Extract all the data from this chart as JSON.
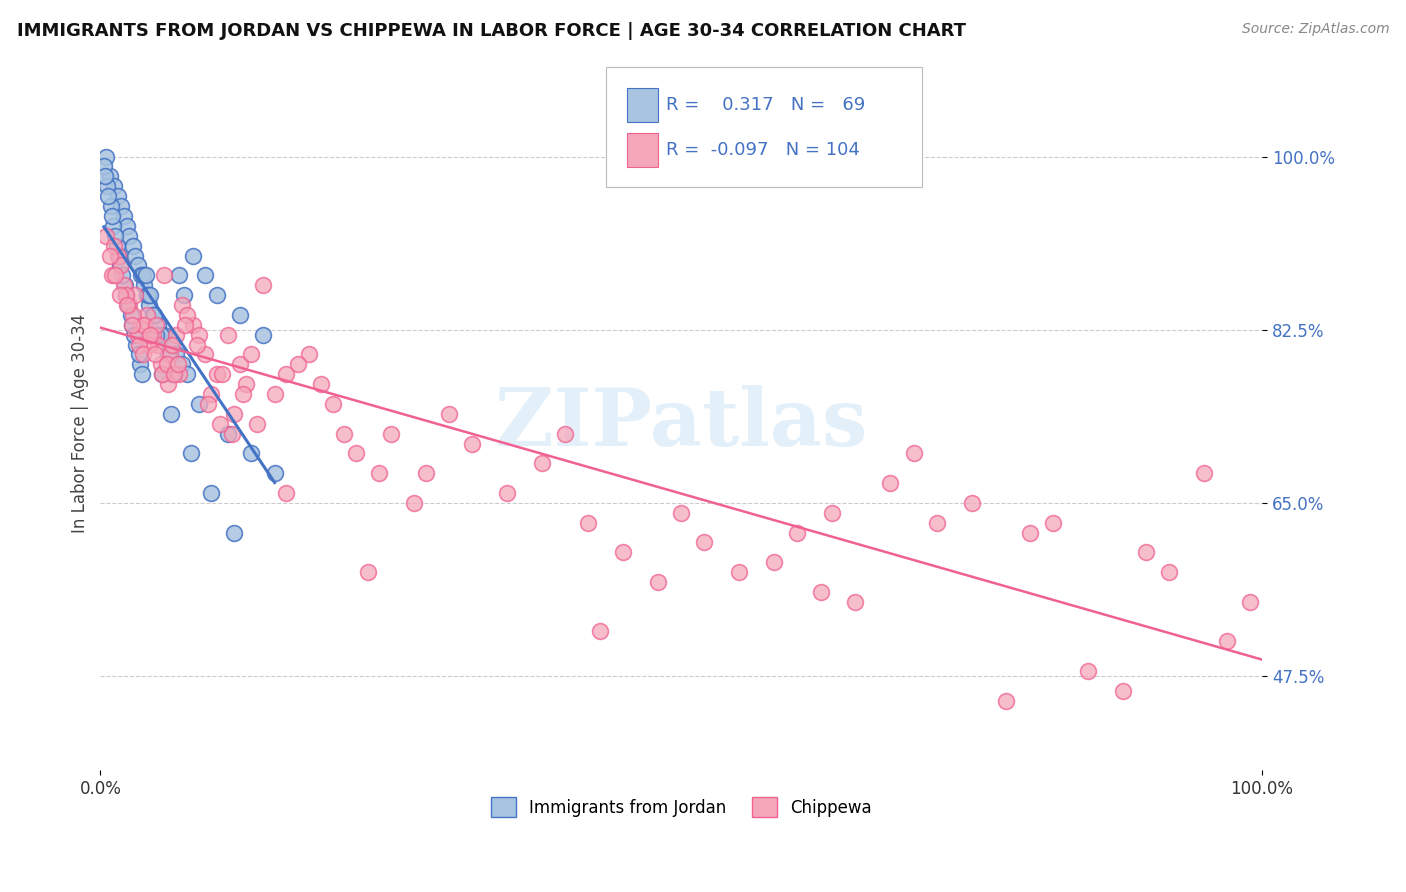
{
  "title": "IMMIGRANTS FROM JORDAN VS CHIPPEWA IN LABOR FORCE | AGE 30-34 CORRELATION CHART",
  "source": "Source: ZipAtlas.com",
  "ylabel": "In Labor Force | Age 30-34",
  "xlim": [
    0,
    100
  ],
  "ylim": [
    38,
    108
  ],
  "yticks": [
    47.5,
    65.0,
    82.5,
    100.0
  ],
  "xtick_labels": [
    "0.0%",
    "100.0%"
  ],
  "ytick_labels": [
    "47.5%",
    "65.0%",
    "82.5%",
    "100.0%"
  ],
  "jordan_R": 0.317,
  "jordan_N": 69,
  "chippewa_R": -0.097,
  "chippewa_N": 104,
  "jordan_color": "#a8c4e0",
  "chippewa_color": "#f4a7b9",
  "jordan_line_color": "#4472c4",
  "chippewa_line_color": "#f06090",
  "jordan_scatter_x": [
    0.5,
    0.8,
    1.2,
    1.5,
    1.8,
    2.0,
    2.3,
    2.5,
    2.8,
    3.0,
    3.2,
    3.5,
    3.8,
    4.0,
    4.2,
    4.5,
    5.0,
    5.5,
    6.0,
    6.5,
    7.0,
    7.5,
    8.0,
    9.0,
    10.0,
    12.0,
    14.0,
    0.3,
    0.6,
    0.9,
    1.1,
    1.4,
    1.7,
    2.1,
    2.4,
    2.7,
    3.1,
    3.4,
    3.7,
    4.1,
    4.6,
    5.2,
    5.8,
    6.2,
    6.8,
    7.2,
    8.5,
    11.0,
    13.0,
    15.0,
    0.4,
    0.7,
    1.0,
    1.3,
    1.6,
    1.9,
    2.2,
    2.6,
    2.9,
    3.3,
    3.6,
    3.9,
    4.3,
    4.8,
    5.3,
    6.1,
    7.8,
    9.5,
    11.5
  ],
  "jordan_scatter_y": [
    100,
    98,
    97,
    96,
    95,
    94,
    93,
    92,
    91,
    90,
    89,
    88,
    87,
    86,
    85,
    84,
    83,
    82,
    81,
    80,
    79,
    78,
    90,
    88,
    86,
    84,
    82,
    99,
    97,
    95,
    93,
    91,
    89,
    87,
    85,
    83,
    81,
    79,
    88,
    86,
    84,
    82,
    80,
    78,
    88,
    86,
    75,
    72,
    70,
    68,
    98,
    96,
    94,
    92,
    90,
    88,
    86,
    84,
    82,
    80,
    78,
    88,
    86,
    82,
    78,
    74,
    70,
    66,
    62
  ],
  "chippewa_scatter_x": [
    0.5,
    1.0,
    1.5,
    2.0,
    2.5,
    3.0,
    3.5,
    4.0,
    4.5,
    5.0,
    5.5,
    6.0,
    6.5,
    7.0,
    8.0,
    9.0,
    10.0,
    11.0,
    12.0,
    13.0,
    14.0,
    15.0,
    16.0,
    18.0,
    20.0,
    22.0,
    25.0,
    28.0,
    30.0,
    35.0,
    40.0,
    45.0,
    50.0,
    55.0,
    60.0,
    65.0,
    70.0,
    75.0,
    80.0,
    85.0,
    90.0,
    95.0,
    99.0,
    1.2,
    1.8,
    2.2,
    2.8,
    3.2,
    3.8,
    4.2,
    4.8,
    5.2,
    5.8,
    6.2,
    6.8,
    7.5,
    8.5,
    9.5,
    10.5,
    11.5,
    12.5,
    13.5,
    17.0,
    19.0,
    21.0,
    24.0,
    27.0,
    32.0,
    38.0,
    42.0,
    48.0,
    52.0,
    58.0,
    62.0,
    68.0,
    72.0,
    78.0,
    82.0,
    88.0,
    92.0,
    97.0,
    0.8,
    1.3,
    1.7,
    2.3,
    2.7,
    3.3,
    3.7,
    4.3,
    4.7,
    5.3,
    5.7,
    6.3,
    6.7,
    7.3,
    8.3,
    9.3,
    10.3,
    11.3,
    12.3,
    16.0,
    23.0,
    43.0,
    63.0
  ],
  "chippewa_scatter_y": [
    92,
    88,
    90,
    87,
    85,
    86,
    83,
    84,
    82,
    81,
    88,
    80,
    82,
    85,
    83,
    80,
    78,
    82,
    79,
    80,
    87,
    76,
    78,
    80,
    75,
    70,
    72,
    68,
    74,
    66,
    72,
    60,
    64,
    58,
    62,
    55,
    70,
    65,
    62,
    48,
    60,
    68,
    55,
    91,
    89,
    86,
    84,
    82,
    83,
    81,
    83,
    79,
    77,
    81,
    78,
    84,
    82,
    76,
    78,
    74,
    77,
    73,
    79,
    77,
    72,
    68,
    65,
    71,
    69,
    63,
    57,
    61,
    59,
    56,
    67,
    63,
    45,
    63,
    46,
    58,
    51,
    90,
    88,
    86,
    85,
    83,
    81,
    80,
    82,
    80,
    78,
    79,
    78,
    79,
    83,
    81,
    75,
    73,
    72,
    76,
    66,
    58,
    52,
    64
  ]
}
